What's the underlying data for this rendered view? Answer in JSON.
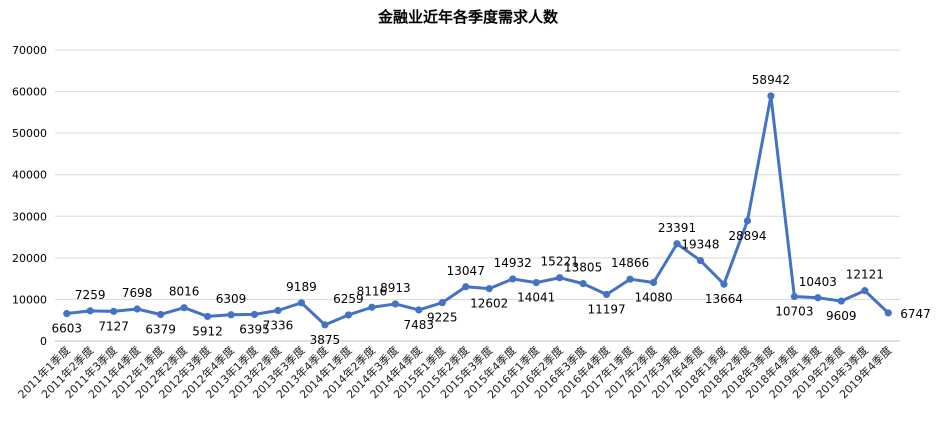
{
  "chart_data": {
    "type": "line",
    "title": "金融业近年各季度需求人数",
    "xlabel": "",
    "ylabel": "",
    "ylim": [
      0,
      70000
    ],
    "yticks": [
      0,
      10000,
      20000,
      30000,
      40000,
      50000,
      60000,
      70000
    ],
    "grid": true,
    "legend": "none",
    "color": "#4472c4",
    "categories": [
      "2011年1季度",
      "2011年2季度",
      "2011年3季度",
      "2011年4季度",
      "2012年1季度",
      "2012年2季度",
      "2012年3季度",
      "2012年4季度",
      "2013年1季度",
      "2013年2季度",
      "2013年3季度",
      "2013年4季度",
      "2014年1季度",
      "2014年2季度",
      "2014年3季度",
      "2014年4季度",
      "2015年1季度",
      "2015年2季度",
      "2015年3季度",
      "2015年4季度",
      "2016年1季度",
      "2016年2季度",
      "2016年3季度",
      "2016年4季度",
      "2017年1季度",
      "2017年2季度",
      "2017年3季度",
      "2017年4季度",
      "2018年1季度",
      "2018年2季度",
      "2018年3季度",
      "2018年4季度",
      "2019年1季度",
      "2019年2季度",
      "2019年3季度",
      "2019年4季度"
    ],
    "values": [
      6603,
      7259,
      7127,
      7698,
      6379,
      8016,
      5912,
      6309,
      6395,
      7336,
      9189,
      3875,
      6259,
      8116,
      8913,
      7483,
      9225,
      13047,
      12602,
      14932,
      14041,
      15221,
      13805,
      11197,
      14866,
      14080,
      23391,
      19348,
      13664,
      28894,
      58942,
      10703,
      10403,
      9609,
      12121,
      6747
    ]
  }
}
